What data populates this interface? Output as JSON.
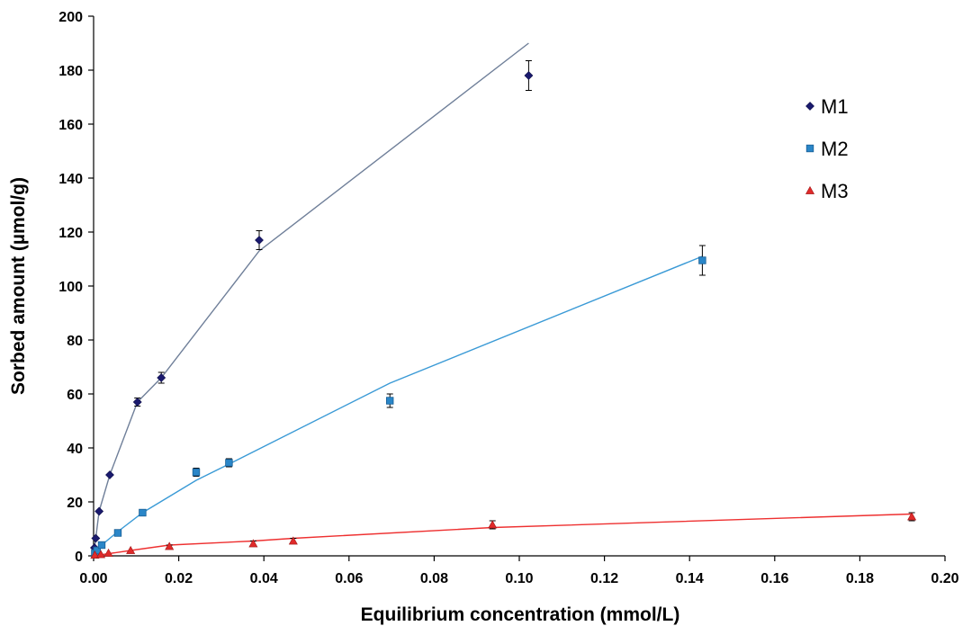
{
  "chart_data": {
    "type": "scatter",
    "title": "",
    "xlabel": "Equilibrium concentration (mmol/L)",
    "ylabel": "Sorbed amount (µmol/g)",
    "xlim": [
      0,
      0.2
    ],
    "ylim": [
      0,
      200
    ],
    "xticks": [
      "0.00",
      "0.02",
      "0.04",
      "0.06",
      "0.08",
      "0.10",
      "0.12",
      "0.14",
      "0.16",
      "0.18",
      "0.20"
    ],
    "yticks": [
      "0",
      "20",
      "40",
      "60",
      "80",
      "100",
      "120",
      "140",
      "160",
      "180",
      "200"
    ],
    "grid": false,
    "legend_position": "top-right",
    "series": [
      {
        "name": "M1",
        "color": "#1a1a6e",
        "line_color": "#6f7f99",
        "marker": "diamond",
        "points": [
          {
            "x": 0.0002,
            "y": 3,
            "err": 0
          },
          {
            "x": 0.0005,
            "y": 6.5,
            "err": 0
          },
          {
            "x": 0.0013,
            "y": 16.5,
            "err": 0
          },
          {
            "x": 0.0038,
            "y": 30,
            "err": 0
          },
          {
            "x": 0.0103,
            "y": 57,
            "err": 1.5
          },
          {
            "x": 0.0159,
            "y": 66,
            "err": 2
          },
          {
            "x": 0.0389,
            "y": 117,
            "err": 3.5
          },
          {
            "x": 0.1022,
            "y": 178,
            "err": 5.5
          }
        ],
        "fit": [
          [
            0,
            0
          ],
          [
            0.0005,
            6.5
          ],
          [
            0.0013,
            16.5
          ],
          [
            0.0038,
            30
          ],
          [
            0.0103,
            57
          ],
          [
            0.0159,
            66
          ],
          [
            0.0389,
            113
          ],
          [
            0.1022,
            190
          ]
        ]
      },
      {
        "name": "M2",
        "color": "#2a86c8",
        "line_color": "#3a9ad6",
        "marker": "square",
        "points": [
          {
            "x": 0.0003,
            "y": 1,
            "err": 0
          },
          {
            "x": 0.0008,
            "y": 2,
            "err": 0
          },
          {
            "x": 0.0019,
            "y": 4,
            "err": 0
          },
          {
            "x": 0.0057,
            "y": 8.5,
            "err": 0
          },
          {
            "x": 0.0115,
            "y": 16,
            "err": 1
          },
          {
            "x": 0.0241,
            "y": 31,
            "err": 1.5
          },
          {
            "x": 0.0318,
            "y": 34.5,
            "err": 1.5
          },
          {
            "x": 0.0696,
            "y": 57.5,
            "err": 2.5
          },
          {
            "x": 0.143,
            "y": 109.5,
            "err": 5.5
          }
        ],
        "fit": [
          [
            0,
            0
          ],
          [
            0.0019,
            4
          ],
          [
            0.0057,
            9
          ],
          [
            0.0115,
            16
          ],
          [
            0.0241,
            28
          ],
          [
            0.0318,
            34
          ],
          [
            0.0696,
            64
          ],
          [
            0.143,
            111
          ]
        ]
      },
      {
        "name": "M3",
        "color": "#e02a2a",
        "line_color": "#ee3030",
        "marker": "triangle",
        "points": [
          {
            "x": 0.0003,
            "y": 0.3,
            "err": 0
          },
          {
            "x": 0.0017,
            "y": 0.5,
            "err": 0
          },
          {
            "x": 0.0035,
            "y": 1,
            "err": 0
          },
          {
            "x": 0.0087,
            "y": 2,
            "err": 0
          },
          {
            "x": 0.0178,
            "y": 3.5,
            "err": 0.5
          },
          {
            "x": 0.0375,
            "y": 4.5,
            "err": 1
          },
          {
            "x": 0.0469,
            "y": 5.5,
            "err": 1
          },
          {
            "x": 0.0937,
            "y": 11.5,
            "err": 1.5
          },
          {
            "x": 0.1922,
            "y": 14.5,
            "err": 1.5
          }
        ],
        "fit": [
          [
            0,
            0
          ],
          [
            0.0087,
            2
          ],
          [
            0.0178,
            4
          ],
          [
            0.0375,
            5.5
          ],
          [
            0.0469,
            6.5
          ],
          [
            0.0937,
            10.5
          ],
          [
            0.1922,
            15.5
          ]
        ]
      }
    ]
  }
}
